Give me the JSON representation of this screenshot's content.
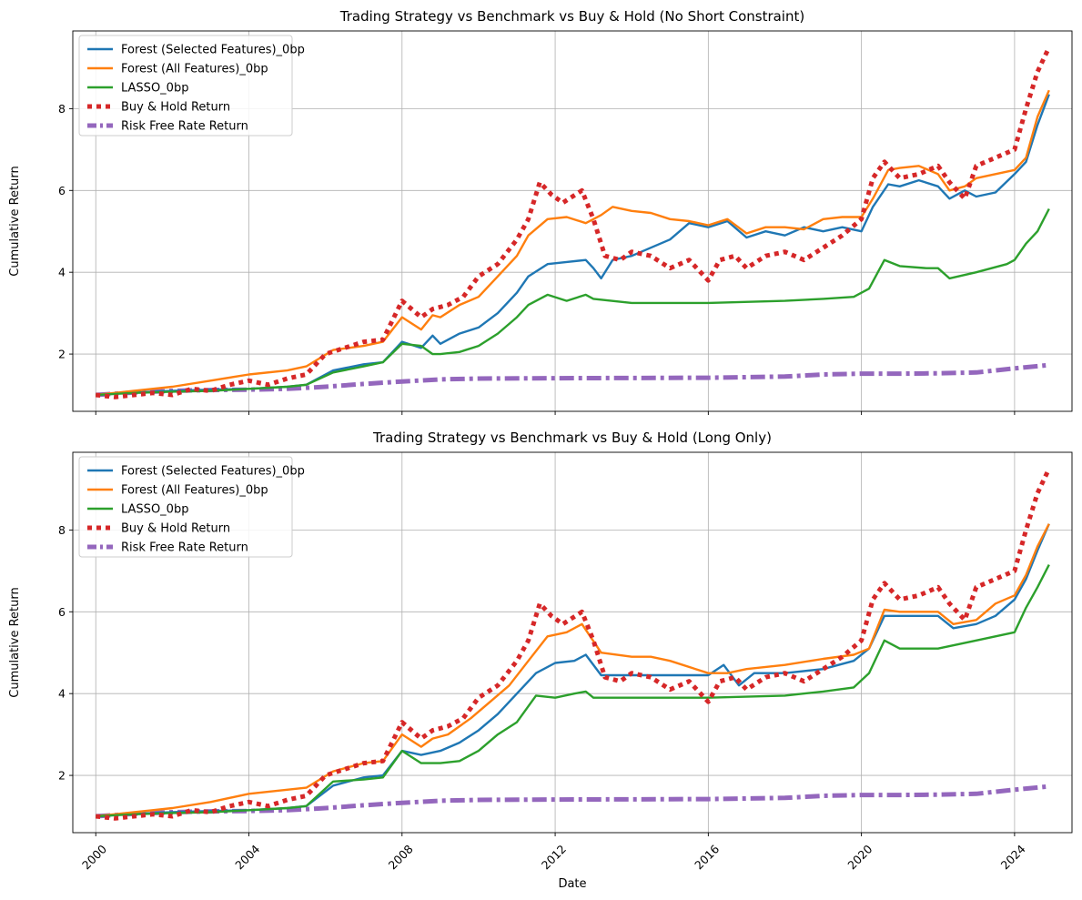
{
  "chart_data": [
    {
      "type": "line",
      "title": "Trading Strategy vs Benchmark vs Buy & Hold (No Short Constraint)",
      "xlabel": "",
      "ylabel": "Cumulative Return",
      "xlim": [
        1999.4,
        2025.5
      ],
      "ylim": [
        0.6,
        9.9
      ],
      "yticks": [
        2,
        4,
        6,
        8
      ],
      "xticks": [
        2000,
        2004,
        2008,
        2012,
        2016,
        2020,
        2024
      ],
      "xticklabels": [
        "",
        "",
        "",
        "",
        "",
        "",
        ""
      ],
      "grid": true,
      "legend": "top-left",
      "series": [
        {
          "name": "Forest (Selected Features)_0bp",
          "color": "#1f77b4",
          "style": "solid",
          "x": [
            2000.0,
            2001,
            2002,
            2003,
            2004,
            2005,
            2005.5,
            2006.2,
            2007.0,
            2007.5,
            2008.0,
            2008.5,
            2008.8,
            2009.0,
            2009.5,
            2010.0,
            2010.5,
            2011.0,
            2011.3,
            2011.8,
            2012.3,
            2012.8,
            2013.0,
            2013.2,
            2013.5,
            2014.0,
            2014.5,
            2015.0,
            2015.5,
            2016.0,
            2016.5,
            2017.0,
            2017.5,
            2018.0,
            2018.5,
            2019.0,
            2019.5,
            2020.0,
            2020.3,
            2020.7,
            2021.0,
            2021.5,
            2022.0,
            2022.3,
            2022.7,
            2023.0,
            2023.5,
            2024.0,
            2024.3,
            2024.6,
            2024.9
          ],
          "y": [
            1.0,
            1.06,
            1.1,
            1.13,
            1.15,
            1.2,
            1.25,
            1.6,
            1.75,
            1.8,
            2.3,
            2.15,
            2.45,
            2.25,
            2.5,
            2.65,
            3.0,
            3.5,
            3.9,
            4.2,
            4.25,
            4.3,
            4.1,
            3.85,
            4.3,
            4.4,
            4.6,
            4.8,
            5.2,
            5.1,
            5.25,
            4.85,
            5.0,
            4.9,
            5.1,
            5.0,
            5.1,
            5.0,
            5.6,
            6.15,
            6.1,
            6.25,
            6.1,
            5.8,
            6.0,
            5.85,
            5.95,
            6.4,
            6.7,
            7.6,
            8.35
          ]
        },
        {
          "name": "Forest (All Features)_0bp",
          "color": "#ff7f0e",
          "style": "solid",
          "x": [
            2000.0,
            2001,
            2002,
            2003,
            2004,
            2005,
            2005.5,
            2006.2,
            2007.0,
            2007.5,
            2008.0,
            2008.5,
            2008.8,
            2009.0,
            2009.5,
            2010.0,
            2010.5,
            2011.0,
            2011.3,
            2011.8,
            2012.3,
            2012.8,
            2013.0,
            2013.2,
            2013.5,
            2014.0,
            2014.5,
            2015.0,
            2015.5,
            2016.0,
            2016.5,
            2017.0,
            2017.5,
            2018.0,
            2018.5,
            2019.0,
            2019.5,
            2020.0,
            2020.3,
            2020.7,
            2021.0,
            2021.5,
            2022.0,
            2022.3,
            2022.7,
            2023.0,
            2023.5,
            2024.0,
            2024.3,
            2024.6,
            2024.9
          ],
          "y": [
            1.0,
            1.1,
            1.2,
            1.35,
            1.5,
            1.6,
            1.7,
            2.1,
            2.2,
            2.3,
            2.9,
            2.6,
            2.95,
            2.9,
            3.2,
            3.4,
            3.9,
            4.4,
            4.9,
            5.3,
            5.35,
            5.2,
            5.3,
            5.4,
            5.6,
            5.5,
            5.45,
            5.3,
            5.25,
            5.15,
            5.3,
            4.95,
            5.1,
            5.1,
            5.05,
            5.3,
            5.35,
            5.35,
            5.8,
            6.5,
            6.55,
            6.6,
            6.4,
            6.0,
            6.1,
            6.3,
            6.4,
            6.5,
            6.8,
            7.8,
            8.45
          ]
        },
        {
          "name": "LASSO_0bp",
          "color": "#2ca02c",
          "style": "solid",
          "x": [
            2000.0,
            2001,
            2002,
            2003,
            2004,
            2005,
            2005.5,
            2006.2,
            2007.0,
            2007.5,
            2008.0,
            2008.5,
            2008.8,
            2009.0,
            2009.5,
            2010.0,
            2010.5,
            2011.0,
            2011.3,
            2011.8,
            2012.3,
            2012.8,
            2013.0,
            2014.0,
            2016.0,
            2018.0,
            2019.0,
            2019.8,
            2020.2,
            2020.6,
            2021.0,
            2021.7,
            2022.0,
            2022.3,
            2023.0,
            2023.8,
            2024.0,
            2024.3,
            2024.6,
            2024.9
          ],
          "y": [
            1.0,
            1.05,
            1.08,
            1.1,
            1.15,
            1.2,
            1.25,
            1.55,
            1.7,
            1.8,
            2.25,
            2.2,
            2.0,
            2.0,
            2.05,
            2.2,
            2.5,
            2.9,
            3.2,
            3.45,
            3.3,
            3.45,
            3.35,
            3.25,
            3.25,
            3.3,
            3.35,
            3.4,
            3.6,
            4.3,
            4.15,
            4.1,
            4.1,
            3.85,
            4.0,
            4.2,
            4.3,
            4.7,
            5.0,
            5.55
          ]
        },
        {
          "name": "Buy & Hold Return",
          "color": "#d62728",
          "style": "dotted",
          "x": [
            2000.0,
            2000.5,
            2001.0,
            2001.5,
            2002.0,
            2002.5,
            2003.0,
            2003.5,
            2004.0,
            2004.5,
            2005.0,
            2005.5,
            2006.0,
            2006.5,
            2007.0,
            2007.5,
            2008.0,
            2008.5,
            2008.8,
            2009.2,
            2009.6,
            2010.0,
            2010.5,
            2011.0,
            2011.3,
            2011.6,
            2011.9,
            2012.2,
            2012.7,
            2013.0,
            2013.3,
            2013.7,
            2014.0,
            2014.5,
            2015.0,
            2015.5,
            2016.0,
            2016.3,
            2016.7,
            2017.0,
            2017.5,
            2018.0,
            2018.5,
            2019.0,
            2019.5,
            2020.0,
            2020.3,
            2020.6,
            2021.0,
            2021.5,
            2022.0,
            2022.3,
            2022.7,
            2023.0,
            2023.5,
            2024.0,
            2024.3,
            2024.6,
            2024.9
          ],
          "y": [
            1.0,
            0.95,
            1.0,
            1.05,
            1.0,
            1.15,
            1.1,
            1.25,
            1.35,
            1.25,
            1.4,
            1.5,
            2.0,
            2.15,
            2.3,
            2.35,
            3.3,
            2.9,
            3.1,
            3.2,
            3.4,
            3.9,
            4.2,
            4.8,
            5.3,
            6.2,
            5.9,
            5.7,
            6.0,
            5.3,
            4.4,
            4.3,
            4.5,
            4.4,
            4.1,
            4.3,
            3.8,
            4.3,
            4.4,
            4.1,
            4.4,
            4.5,
            4.3,
            4.6,
            4.9,
            5.3,
            6.3,
            6.7,
            6.3,
            6.4,
            6.6,
            6.2,
            5.8,
            6.6,
            6.8,
            7.0,
            8.0,
            8.9,
            9.5
          ]
        },
        {
          "name": "Risk Free Rate Return",
          "color": "#9467bd",
          "style": "dashdot",
          "x": [
            2000.0,
            2001,
            2002,
            2003,
            2004,
            2005,
            2006,
            2007,
            2008,
            2009,
            2010,
            2012,
            2016,
            2018,
            2019,
            2020,
            2021,
            2022,
            2023,
            2024,
            2024.9
          ],
          "y": [
            1.0,
            1.06,
            1.1,
            1.12,
            1.13,
            1.15,
            1.2,
            1.27,
            1.33,
            1.38,
            1.4,
            1.41,
            1.42,
            1.45,
            1.5,
            1.52,
            1.52,
            1.53,
            1.55,
            1.65,
            1.73
          ]
        }
      ]
    },
    {
      "type": "line",
      "title": "Trading Strategy vs Benchmark vs Buy & Hold (Long Only)",
      "xlabel": "Date",
      "ylabel": "Cumulative Return",
      "xlim": [
        1999.4,
        2025.5
      ],
      "ylim": [
        0.6,
        9.9
      ],
      "yticks": [
        2,
        4,
        6,
        8
      ],
      "xticks": [
        2000,
        2004,
        2008,
        2012,
        2016,
        2020,
        2024
      ],
      "xticklabels": [
        "2000",
        "2004",
        "2008",
        "2012",
        "2016",
        "2020",
        "2024"
      ],
      "grid": true,
      "legend": "top-left",
      "series": [
        {
          "name": "Forest (Selected Features)_0bp",
          "color": "#1f77b4",
          "style": "solid",
          "x": [
            2000.0,
            2001,
            2002,
            2003,
            2004,
            2005,
            2005.5,
            2006.2,
            2007.0,
            2007.5,
            2008.0,
            2008.5,
            2009.0,
            2009.5,
            2010.0,
            2010.5,
            2011.0,
            2011.5,
            2012.0,
            2012.5,
            2012.8,
            2013.2,
            2014.0,
            2016.0,
            2016.4,
            2016.8,
            2017.2,
            2018.0,
            2019.0,
            2019.8,
            2020.2,
            2020.6,
            2021.0,
            2022.0,
            2022.4,
            2023.0,
            2023.5,
            2024.0,
            2024.3,
            2024.6,
            2024.9
          ],
          "y": [
            1.0,
            1.06,
            1.1,
            1.13,
            1.15,
            1.2,
            1.25,
            1.75,
            1.95,
            2.0,
            2.6,
            2.5,
            2.6,
            2.8,
            3.1,
            3.5,
            4.0,
            4.5,
            4.75,
            4.8,
            4.95,
            4.45,
            4.45,
            4.45,
            4.7,
            4.2,
            4.5,
            4.5,
            4.6,
            4.8,
            5.1,
            5.9,
            5.9,
            5.9,
            5.6,
            5.7,
            5.9,
            6.3,
            6.8,
            7.5,
            8.15
          ]
        },
        {
          "name": "Forest (All Features)_0bp",
          "color": "#ff7f0e",
          "style": "solid",
          "x": [
            2000.0,
            2001,
            2002,
            2003,
            2004,
            2005,
            2005.5,
            2006.2,
            2007.0,
            2007.5,
            2008.0,
            2008.5,
            2008.8,
            2009.2,
            2009.8,
            2010.3,
            2010.8,
            2011.3,
            2011.8,
            2012.3,
            2012.7,
            2013.2,
            2014.0,
            2014.5,
            2015.0,
            2016.0,
            2016.5,
            2017.0,
            2018.0,
            2019.0,
            2019.8,
            2020.2,
            2020.6,
            2021.0,
            2022.0,
            2022.4,
            2023.0,
            2023.5,
            2024.0,
            2024.3,
            2024.6,
            2024.9
          ],
          "y": [
            1.0,
            1.1,
            1.2,
            1.35,
            1.55,
            1.65,
            1.7,
            2.1,
            2.3,
            2.35,
            3.0,
            2.7,
            2.9,
            3.0,
            3.4,
            3.8,
            4.2,
            4.8,
            5.4,
            5.5,
            5.7,
            5.0,
            4.9,
            4.9,
            4.8,
            4.5,
            4.5,
            4.6,
            4.7,
            4.85,
            4.95,
            5.1,
            6.05,
            6.0,
            6.0,
            5.7,
            5.8,
            6.2,
            6.4,
            6.9,
            7.6,
            8.15
          ]
        },
        {
          "name": "LASSO_0bp",
          "color": "#2ca02c",
          "style": "solid",
          "x": [
            2000.0,
            2001,
            2002,
            2003,
            2004,
            2005,
            2005.5,
            2006.2,
            2007.0,
            2007.5,
            2008.0,
            2008.5,
            2009.0,
            2009.5,
            2010.0,
            2010.5,
            2011.0,
            2011.5,
            2012.0,
            2012.5,
            2012.8,
            2013.0,
            2014.0,
            2016.0,
            2018.0,
            2019.0,
            2019.8,
            2020.2,
            2020.6,
            2021.0,
            2022.0,
            2023.0,
            2024.0,
            2024.3,
            2024.6,
            2024.9
          ],
          "y": [
            1.0,
            1.05,
            1.08,
            1.1,
            1.15,
            1.2,
            1.25,
            1.85,
            1.9,
            1.95,
            2.6,
            2.3,
            2.3,
            2.35,
            2.6,
            3.0,
            3.3,
            3.95,
            3.9,
            4.0,
            4.05,
            3.9,
            3.9,
            3.9,
            3.95,
            4.05,
            4.15,
            4.5,
            5.3,
            5.1,
            5.1,
            5.3,
            5.5,
            6.1,
            6.6,
            7.15
          ]
        },
        {
          "name": "Buy & Hold Return",
          "color": "#d62728",
          "style": "dotted",
          "x": [
            2000.0,
            2000.5,
            2001.0,
            2001.5,
            2002.0,
            2002.5,
            2003.0,
            2003.5,
            2004.0,
            2004.5,
            2005.0,
            2005.5,
            2006.0,
            2006.5,
            2007.0,
            2007.5,
            2008.0,
            2008.5,
            2008.8,
            2009.2,
            2009.6,
            2010.0,
            2010.5,
            2011.0,
            2011.3,
            2011.6,
            2011.9,
            2012.2,
            2012.7,
            2013.0,
            2013.3,
            2013.7,
            2014.0,
            2014.5,
            2015.0,
            2015.5,
            2016.0,
            2016.3,
            2016.7,
            2017.0,
            2017.5,
            2018.0,
            2018.5,
            2019.0,
            2019.5,
            2020.0,
            2020.3,
            2020.6,
            2021.0,
            2021.5,
            2022.0,
            2022.3,
            2022.7,
            2023.0,
            2023.5,
            2024.0,
            2024.3,
            2024.6,
            2024.9
          ],
          "y": [
            1.0,
            0.95,
            1.0,
            1.05,
            1.0,
            1.15,
            1.1,
            1.25,
            1.35,
            1.25,
            1.4,
            1.5,
            2.0,
            2.15,
            2.3,
            2.35,
            3.3,
            2.9,
            3.1,
            3.2,
            3.4,
            3.9,
            4.2,
            4.8,
            5.3,
            6.2,
            5.9,
            5.7,
            6.0,
            5.3,
            4.4,
            4.3,
            4.5,
            4.4,
            4.1,
            4.3,
            3.8,
            4.3,
            4.4,
            4.1,
            4.4,
            4.5,
            4.3,
            4.6,
            4.9,
            5.3,
            6.3,
            6.7,
            6.3,
            6.4,
            6.6,
            6.2,
            5.8,
            6.6,
            6.8,
            7.0,
            8.0,
            8.9,
            9.5
          ]
        },
        {
          "name": "Risk Free Rate Return",
          "color": "#9467bd",
          "style": "dashdot",
          "x": [
            2000.0,
            2001,
            2002,
            2003,
            2004,
            2005,
            2006,
            2007,
            2008,
            2009,
            2010,
            2012,
            2016,
            2018,
            2019,
            2020,
            2021,
            2022,
            2023,
            2024,
            2024.9
          ],
          "y": [
            1.0,
            1.06,
            1.1,
            1.12,
            1.13,
            1.15,
            1.2,
            1.27,
            1.33,
            1.38,
            1.4,
            1.41,
            1.42,
            1.45,
            1.5,
            1.52,
            1.52,
            1.53,
            1.55,
            1.65,
            1.73
          ]
        }
      ]
    }
  ]
}
